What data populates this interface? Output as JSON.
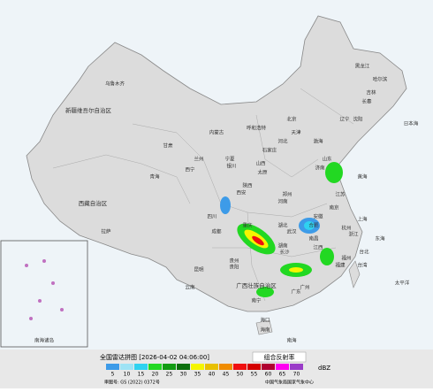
{
  "header": {
    "title": "全国雷达拼图 [2026-04-02 04:06:00]",
    "product": "组合反射率"
  },
  "legend": {
    "ticks": [
      5,
      10,
      15,
      20,
      25,
      30,
      35,
      40,
      45,
      50,
      55,
      60,
      65,
      70
    ],
    "colors": [
      "#3d9be8",
      "#9ee3f5",
      "#2fd2f0",
      "#22d822",
      "#119b11",
      "#0b6e0b",
      "#f5f500",
      "#e8c000",
      "#f08c00",
      "#f01010",
      "#d40000",
      "#b00030",
      "#ff00f0",
      "#9a3cc8"
    ],
    "unit": "dBZ"
  },
  "footer": {
    "approval": "审图号: GS (2022) 0372号",
    "source": "中国气象局国家气象中心"
  },
  "labels": [
    "乌鲁木齐",
    "新疆维吾尔自治区",
    "西藏自治区",
    "拉萨",
    "青海",
    "西宁",
    "甘肃",
    "兰州",
    "内蒙古",
    "呼和浩特",
    "宁夏",
    "银川",
    "黑龙江",
    "哈尔滨",
    "吉林",
    "长春",
    "辽宁",
    "沈阳",
    "北京",
    "天津",
    "河北",
    "石家庄",
    "山西",
    "太原",
    "陕西",
    "西安",
    "河南",
    "郑州",
    "山东",
    "济南",
    "江苏",
    "南京",
    "安徽",
    "合肥",
    "湖北",
    "武汉",
    "四川",
    "成都",
    "重庆",
    "贵州",
    "贵阳",
    "云南",
    "昆明",
    "广西壮族自治区",
    "南宁",
    "湖南",
    "长沙",
    "江西",
    "南昌",
    "浙江",
    "杭州",
    "福建",
    "福州",
    "广东",
    "广州",
    "台湾",
    "台北",
    "海南",
    "海口",
    "上海",
    "渤海",
    "黄海",
    "东海",
    "南海",
    "太平洋",
    "日本海",
    "南海诸岛"
  ]
}
